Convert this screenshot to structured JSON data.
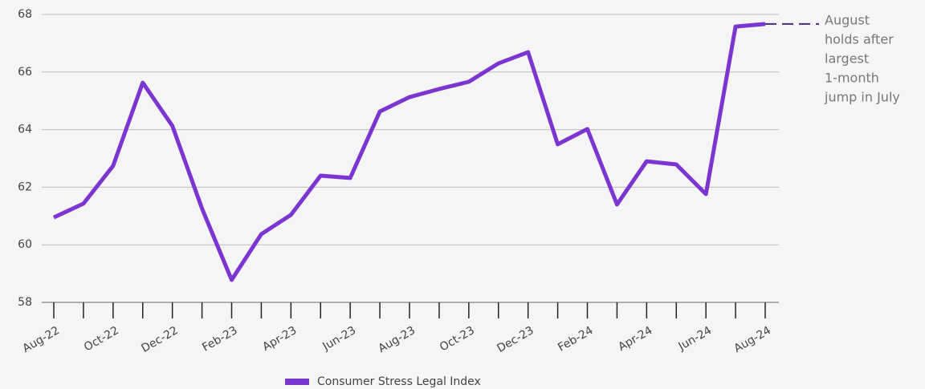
{
  "chart_data": {
    "type": "line",
    "categories": [
      "Aug-22",
      null,
      "Oct-22",
      null,
      "Dec-22",
      null,
      "Feb-23",
      null,
      "Apr-23",
      null,
      "Jun-23",
      null,
      "Aug-23",
      null,
      "Oct-23",
      null,
      "Dec-23",
      null,
      "Feb-24",
      null,
      "Apr-24",
      null,
      "Jun-24",
      null,
      "Aug-24"
    ],
    "series": [
      {
        "name": "Consumer Stress Legal Index",
        "color": "#7b35d0",
        "values": [
          60.95,
          61.43,
          62.74,
          65.63,
          64.13,
          61.26,
          58.78,
          60.37,
          61.04,
          62.4,
          62.32,
          64.63,
          65.13,
          65.41,
          65.66,
          66.3,
          66.69,
          63.49,
          64.02,
          61.4,
          62.9,
          62.79,
          61.76,
          67.58,
          67.67
        ]
      }
    ],
    "ylim": [
      58,
      68
    ],
    "yticks": [
      58,
      60,
      62,
      64,
      66,
      68
    ],
    "grid": true,
    "legend": "bottom",
    "annotation": {
      "lines": [
        "August",
        "holds after",
        "largest",
        "1-month",
        "jump in July"
      ],
      "color": "#4b2a7a"
    }
  }
}
